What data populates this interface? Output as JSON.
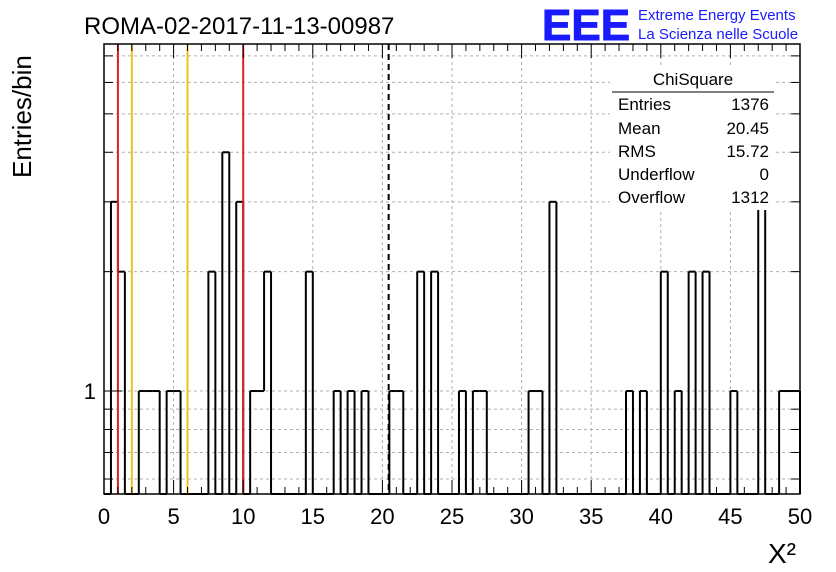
{
  "header": {
    "run_title": "ROMA-02-2017-11-13-00987",
    "logo_text": "EEE",
    "logo_line1": "Extreme Energy Events",
    "logo_line2": "La Scienza nelle Scuole"
  },
  "colors": {
    "logo": "#1a1aff",
    "red_line": "#e02020",
    "yellow_line": "#f0c020",
    "histogram": "#000000",
    "grid": "#b0b0b0"
  },
  "stats": {
    "name": "ChiSquare",
    "rows": [
      {
        "label": "Entries",
        "value": "1376"
      },
      {
        "label": "Mean",
        "value": "20.45"
      },
      {
        "label": "RMS",
        "value": "15.72"
      },
      {
        "label": "Underflow",
        "value": "0"
      },
      {
        "label": "Overflow",
        "value": "1312"
      }
    ]
  },
  "chart_data": {
    "type": "bar",
    "title": "ROMA-02-2017-11-13-00987",
    "xlabel": "X²",
    "ylabel": "Entries/bin",
    "xlim": [
      0,
      50
    ],
    "ylim": [
      0.55,
      7.5
    ],
    "y_scale": "log",
    "grid": true,
    "bin_width": 0.5,
    "x_ticks": [
      "0",
      "5",
      "10",
      "15",
      "20",
      "25",
      "30",
      "35",
      "40",
      "45",
      "50"
    ],
    "y_tick_labels": [
      "1"
    ],
    "bins": [
      {
        "x": 0.5,
        "y": 3
      },
      {
        "x": 1.0,
        "y": 2
      },
      {
        "x": 2.5,
        "y": 1
      },
      {
        "x": 3.0,
        "y": 1
      },
      {
        "x": 3.5,
        "y": 1
      },
      {
        "x": 4.5,
        "y": 1
      },
      {
        "x": 5.0,
        "y": 1
      },
      {
        "x": 7.5,
        "y": 2
      },
      {
        "x": 8.5,
        "y": 4
      },
      {
        "x": 9.5,
        "y": 3
      },
      {
        "x": 10.5,
        "y": 1
      },
      {
        "x": 11.0,
        "y": 1
      },
      {
        "x": 11.5,
        "y": 2
      },
      {
        "x": 14.5,
        "y": 2
      },
      {
        "x": 16.5,
        "y": 1
      },
      {
        "x": 17.5,
        "y": 1
      },
      {
        "x": 18.5,
        "y": 1
      },
      {
        "x": 20.5,
        "y": 1
      },
      {
        "x": 21.0,
        "y": 1
      },
      {
        "x": 22.5,
        "y": 2
      },
      {
        "x": 23.5,
        "y": 2
      },
      {
        "x": 25.5,
        "y": 1
      },
      {
        "x": 26.5,
        "y": 1
      },
      {
        "x": 27.0,
        "y": 1
      },
      {
        "x": 30.5,
        "y": 1
      },
      {
        "x": 31.0,
        "y": 1
      },
      {
        "x": 32.0,
        "y": 3
      },
      {
        "x": 37.5,
        "y": 1
      },
      {
        "x": 38.5,
        "y": 1
      },
      {
        "x": 40.0,
        "y": 2
      },
      {
        "x": 41.0,
        "y": 1
      },
      {
        "x": 42.0,
        "y": 2
      },
      {
        "x": 43.0,
        "y": 2
      },
      {
        "x": 45.0,
        "y": 1
      },
      {
        "x": 47.0,
        "y": 3
      },
      {
        "x": 48.5,
        "y": 1
      },
      {
        "x": 49.0,
        "y": 1
      },
      {
        "x": 49.5,
        "y": 1
      }
    ],
    "vertical_lines": [
      {
        "x": 1.0,
        "style": "red"
      },
      {
        "x": 2.0,
        "style": "yellow"
      },
      {
        "x": 6.0,
        "style": "yellow"
      },
      {
        "x": 10.0,
        "style": "red"
      },
      {
        "x": 20.45,
        "style": "dashed"
      }
    ]
  }
}
